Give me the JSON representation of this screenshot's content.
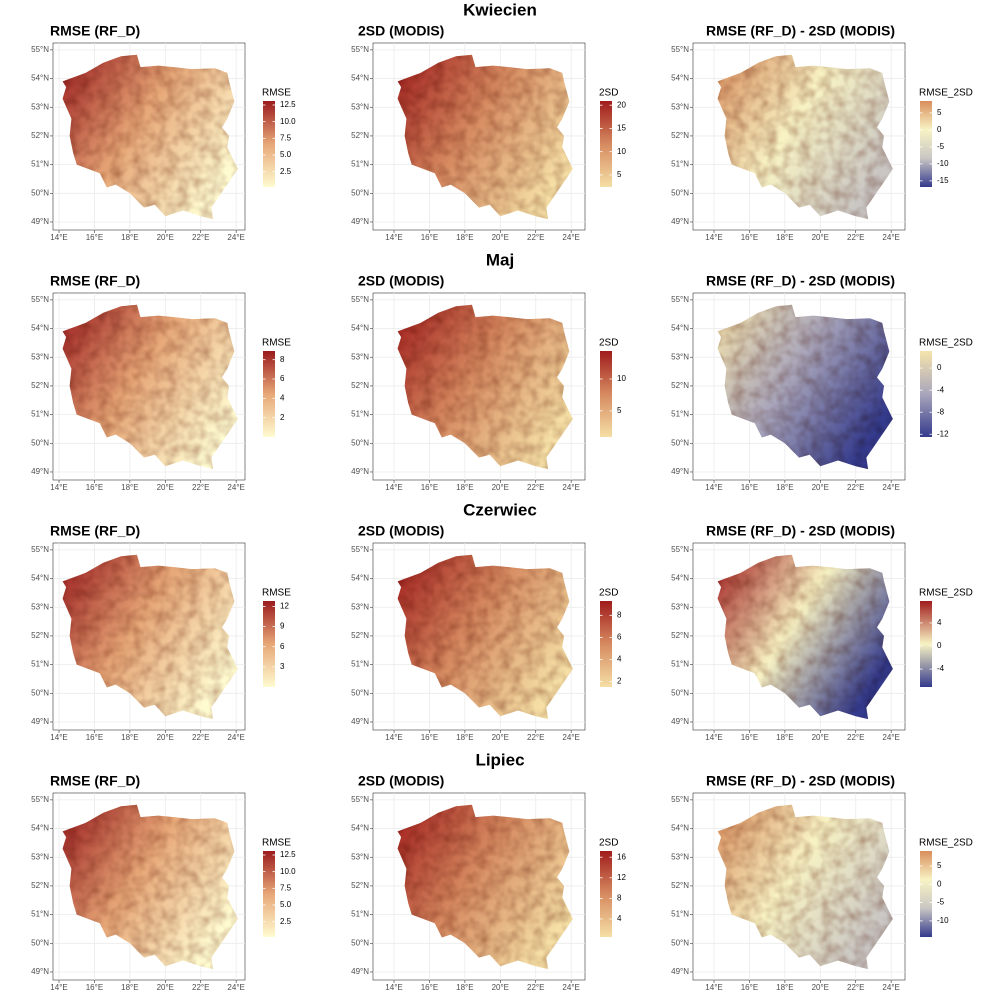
{
  "axes": {
    "xlim": [
      13.66,
      24.5
    ],
    "ylim": [
      48.72,
      55.24
    ],
    "xticks": [
      {
        "value": 14,
        "label": "14°E"
      },
      {
        "value": 16,
        "label": "16°E"
      },
      {
        "value": 18,
        "label": "18°E"
      },
      {
        "value": 20,
        "label": "20°E"
      },
      {
        "value": 22,
        "label": "22°E"
      },
      {
        "value": 24,
        "label": "24°E"
      }
    ],
    "yticks": [
      {
        "value": 49,
        "label": "49°N"
      },
      {
        "value": 50,
        "label": "50°N"
      },
      {
        "value": 51,
        "label": "51°N"
      },
      {
        "value": 52,
        "label": "52°N"
      },
      {
        "value": 53,
        "label": "53°N"
      },
      {
        "value": 54,
        "label": "54°N"
      },
      {
        "value": 55,
        "label": "55°N"
      }
    ]
  },
  "rows": [
    {
      "title": "Kwiecien",
      "panels": [
        {
          "title": "RMSE (RF_D)",
          "legend": {
            "title": "RMSE",
            "limits": [
              0.2,
              13.1
            ],
            "colors": [
              "#fffbd0",
              "#e7a777",
              "#9b1b1e"
            ],
            "ticks": [
              2.5,
              {
                "value": 5,
                "label": "5.0"
              },
              7.5,
              {
                "value": 10,
                "label": "10.0"
              },
              12.5
            ]
          }
        },
        {
          "title": "2SD (MODIS)",
          "legend": {
            "title": "2SD",
            "limits": [
              2.4,
              20.9
            ],
            "colors": [
              "#f5dfa5",
              "#d68a60",
              "#a01c1c"
            ],
            "ticks": [
              5,
              10,
              15,
              20
            ]
          }
        },
        {
          "title": "RMSE (RF_D) - 2SD (MODIS)",
          "legend": {
            "title": "RMSE_2SD",
            "limits": [
              -16.8,
              8.5
            ],
            "colors": [
              "#343a8c",
              "#c9c6c4",
              "#f8f3c4",
              "#d98e5c"
            ],
            "ticks": [
              -15,
              -10,
              -5,
              0,
              5
            ]
          }
        }
      ]
    },
    {
      "title": "Maj",
      "panels": [
        {
          "title": "RMSE (RF_D)",
          "legend": {
            "title": "RMSE",
            "limits": [
              0,
              8.9
            ],
            "colors": [
              "#fffbd0",
              "#e7a777",
              "#9b1b1e"
            ],
            "ticks": [
              2,
              4,
              6,
              8
            ]
          }
        },
        {
          "title": "2SD (MODIS)",
          "legend": {
            "title": "2SD",
            "limits": [
              0.9,
              14.4
            ],
            "colors": [
              "#f5dfa5",
              "#d68a60",
              "#a01c1c"
            ],
            "ticks": [
              5,
              10
            ]
          }
        },
        {
          "title": "RMSE (RF_D) - 2SD (MODIS)",
          "legend": {
            "title": "RMSE_2SD",
            "limits": [
              -12.5,
              3.1
            ],
            "colors": [
              "#343a8c",
              "#a9a6bc",
              "#f5e4ac"
            ],
            "ticks": [
              -12,
              -8,
              -4,
              0
            ]
          }
        }
      ]
    },
    {
      "title": "Czerwiec",
      "panels": [
        {
          "title": "RMSE (RF_D)",
          "legend": {
            "title": "RMSE",
            "limits": [
              0,
              12.8
            ],
            "colors": [
              "#fffbd0",
              "#e7a777",
              "#9b1b1e"
            ],
            "ticks": [
              3,
              6,
              9,
              12
            ]
          }
        },
        {
          "title": "2SD (MODIS)",
          "legend": {
            "title": "2SD",
            "limits": [
              1.5,
              9.3
            ],
            "colors": [
              "#f5dfa5",
              "#d68a60",
              "#a01c1c"
            ],
            "ticks": [
              2,
              4,
              6,
              8
            ]
          }
        },
        {
          "title": "RMSE (RF_D) - 2SD (MODIS)",
          "legend": {
            "title": "RMSE_2SD",
            "limits": [
              -7.1,
              7.8
            ],
            "colors": [
              "#343a8c",
              "#f8f3c4",
              "#a01c1c"
            ],
            "ticks": [
              -4,
              0,
              4
            ]
          }
        }
      ]
    },
    {
      "title": "Lipiec",
      "panels": [
        {
          "title": "RMSE (RF_D)",
          "legend": {
            "title": "RMSE",
            "limits": [
              0.2,
              13.1
            ],
            "colors": [
              "#fffbd0",
              "#e7a777",
              "#9b1b1e"
            ],
            "ticks": [
              2.5,
              {
                "value": 5,
                "label": "5.0"
              },
              7.5,
              {
                "value": 10,
                "label": "10.0"
              },
              12.5
            ]
          }
        },
        {
          "title": "2SD (MODIS)",
          "legend": {
            "title": "2SD",
            "limits": [
              0.5,
              17.2
            ],
            "colors": [
              "#f5dfa5",
              "#d68a60",
              "#a01c1c"
            ],
            "ticks": [
              4,
              8,
              12,
              16
            ]
          }
        },
        {
          "title": "RMSE (RF_D) - 2SD (MODIS)",
          "legend": {
            "title": "RMSE_2SD",
            "limits": [
              -14.4,
              9.1
            ],
            "colors": [
              "#343a8c",
              "#c9c6c4",
              "#f8f3c4",
              "#d98e5c"
            ],
            "ticks": [
              -10,
              -5,
              0,
              5
            ]
          }
        }
      ]
    }
  ]
}
